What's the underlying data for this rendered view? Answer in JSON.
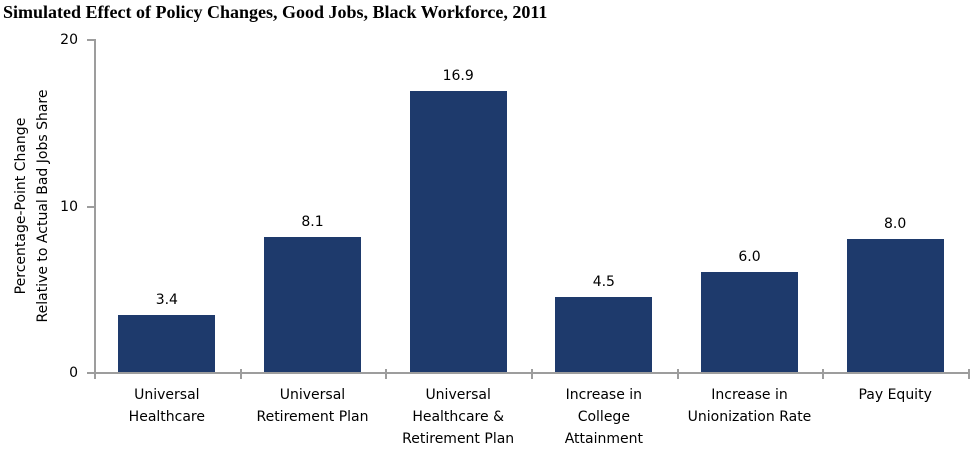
{
  "chart_data": {
    "type": "bar",
    "title": "Simulated Effect of Policy Changes, Good Jobs, Black Workforce, 2011",
    "xlabel": "",
    "ylabel": "Percentage-Point Change\nRelative to Actual Bad Jobs Share",
    "categories": [
      "Universal Healthcare",
      "Universal Retirement Plan",
      "Universal Healthcare & Retirement Plan",
      "Increase in College Attainment",
      "Increase in Unionization Rate",
      "Pay Equity"
    ],
    "category_labels_wrapped": [
      "Universal\nHealthcare",
      "Universal\nRetirement Plan",
      "Universal\nHealthcare &\nRetirement Plan",
      "Increase in\nCollege\nAttainment",
      "Increase in\nUnionization Rate",
      "Pay Equity"
    ],
    "values": [
      3.4,
      8.1,
      16.9,
      4.5,
      6.0,
      8.0
    ],
    "value_labels": [
      "3.4",
      "8.1",
      "16.9",
      "4.5",
      "6.0",
      "8.0"
    ],
    "ylim": [
      0,
      20
    ],
    "yticks": [
      0,
      10,
      20
    ],
    "ytick_labels": [
      "0",
      "10",
      "20"
    ],
    "grid": false,
    "legend": "none",
    "colors": {
      "bar": "#1E3A6C",
      "axis": "#9D9D9D",
      "text": "#000000",
      "background": "#FFFFFF"
    }
  }
}
